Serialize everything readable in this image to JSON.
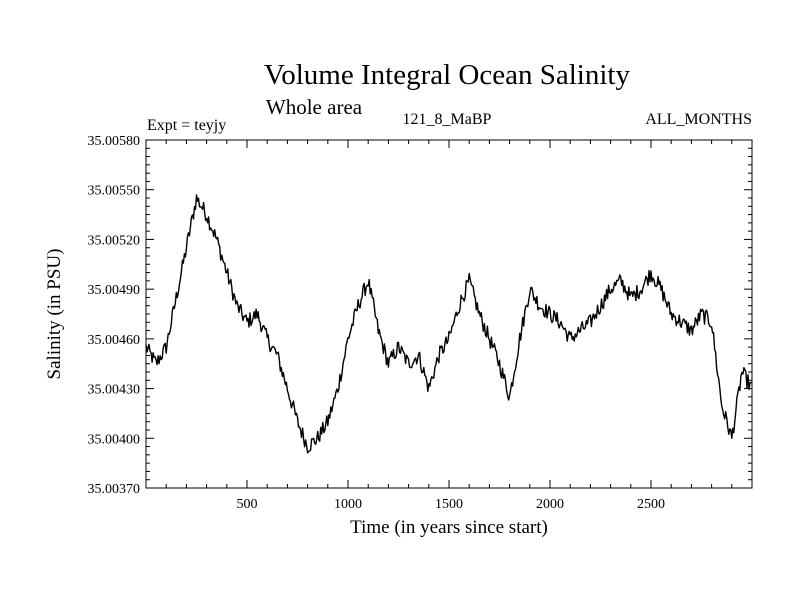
{
  "chart_data": {
    "type": "line",
    "title": "Volume Integral Ocean Salinity",
    "subtitle": "Whole area",
    "header_left": "Expt = teyjy",
    "header_center": "121_8_MaBP",
    "header_right": "ALL_MONTHS",
    "xlabel": "Time (in years since start)",
    "ylabel": "Salinity (in PSU)",
    "xlim": [
      0,
      3000
    ],
    "ylim": [
      35.0037,
      35.0058
    ],
    "x_ticks": [
      500,
      1000,
      1500,
      2000,
      2500
    ],
    "x_tick_labels": [
      "500",
      "1000",
      "1500",
      "2000",
      "2500"
    ],
    "y_ticks": [
      35.0037,
      35.004,
      35.0043,
      35.0046,
      35.0049,
      35.0052,
      35.0055,
      35.0058
    ],
    "y_tick_labels": [
      "35.00370",
      "35.00400",
      "35.00430",
      "35.00460",
      "35.00490",
      "35.00520",
      "35.00550",
      "35.00580"
    ],
    "series": [
      {
        "name": "Salinity",
        "color": "#000000",
        "x": [
          0,
          50,
          100,
          150,
          200,
          250,
          300,
          350,
          400,
          450,
          500,
          550,
          600,
          650,
          700,
          750,
          800,
          850,
          900,
          950,
          1000,
          1050,
          1100,
          1150,
          1200,
          1250,
          1300,
          1350,
          1400,
          1450,
          1500,
          1550,
          1600,
          1650,
          1700,
          1750,
          1800,
          1850,
          1900,
          1950,
          2000,
          2050,
          2100,
          2150,
          2200,
          2250,
          2300,
          2350,
          2400,
          2450,
          2500,
          2550,
          2600,
          2650,
          2700,
          2750,
          2800,
          2850,
          2900,
          2950,
          3000
        ],
        "values": [
          35.00455,
          35.00445,
          35.00455,
          35.00485,
          35.00515,
          35.00545,
          35.00535,
          35.0052,
          35.005,
          35.0048,
          35.0047,
          35.00475,
          35.0046,
          35.0045,
          35.0043,
          35.0041,
          35.00395,
          35.004,
          35.0041,
          35.0043,
          35.0046,
          35.0048,
          35.00495,
          35.00465,
          35.00445,
          35.00455,
          35.00445,
          35.0045,
          35.0043,
          35.0045,
          35.0046,
          35.0048,
          35.00495,
          35.00475,
          35.0046,
          35.00445,
          35.00425,
          35.0046,
          35.0049,
          35.0048,
          35.00475,
          35.0047,
          35.0046,
          35.00465,
          35.0047,
          35.0048,
          35.0049,
          35.00495,
          35.00485,
          35.0049,
          35.005,
          35.0049,
          35.00475,
          35.0047,
          35.00465,
          35.00475,
          35.0047,
          35.0042,
          35.004,
          35.0044,
          35.0043
        ]
      }
    ]
  }
}
